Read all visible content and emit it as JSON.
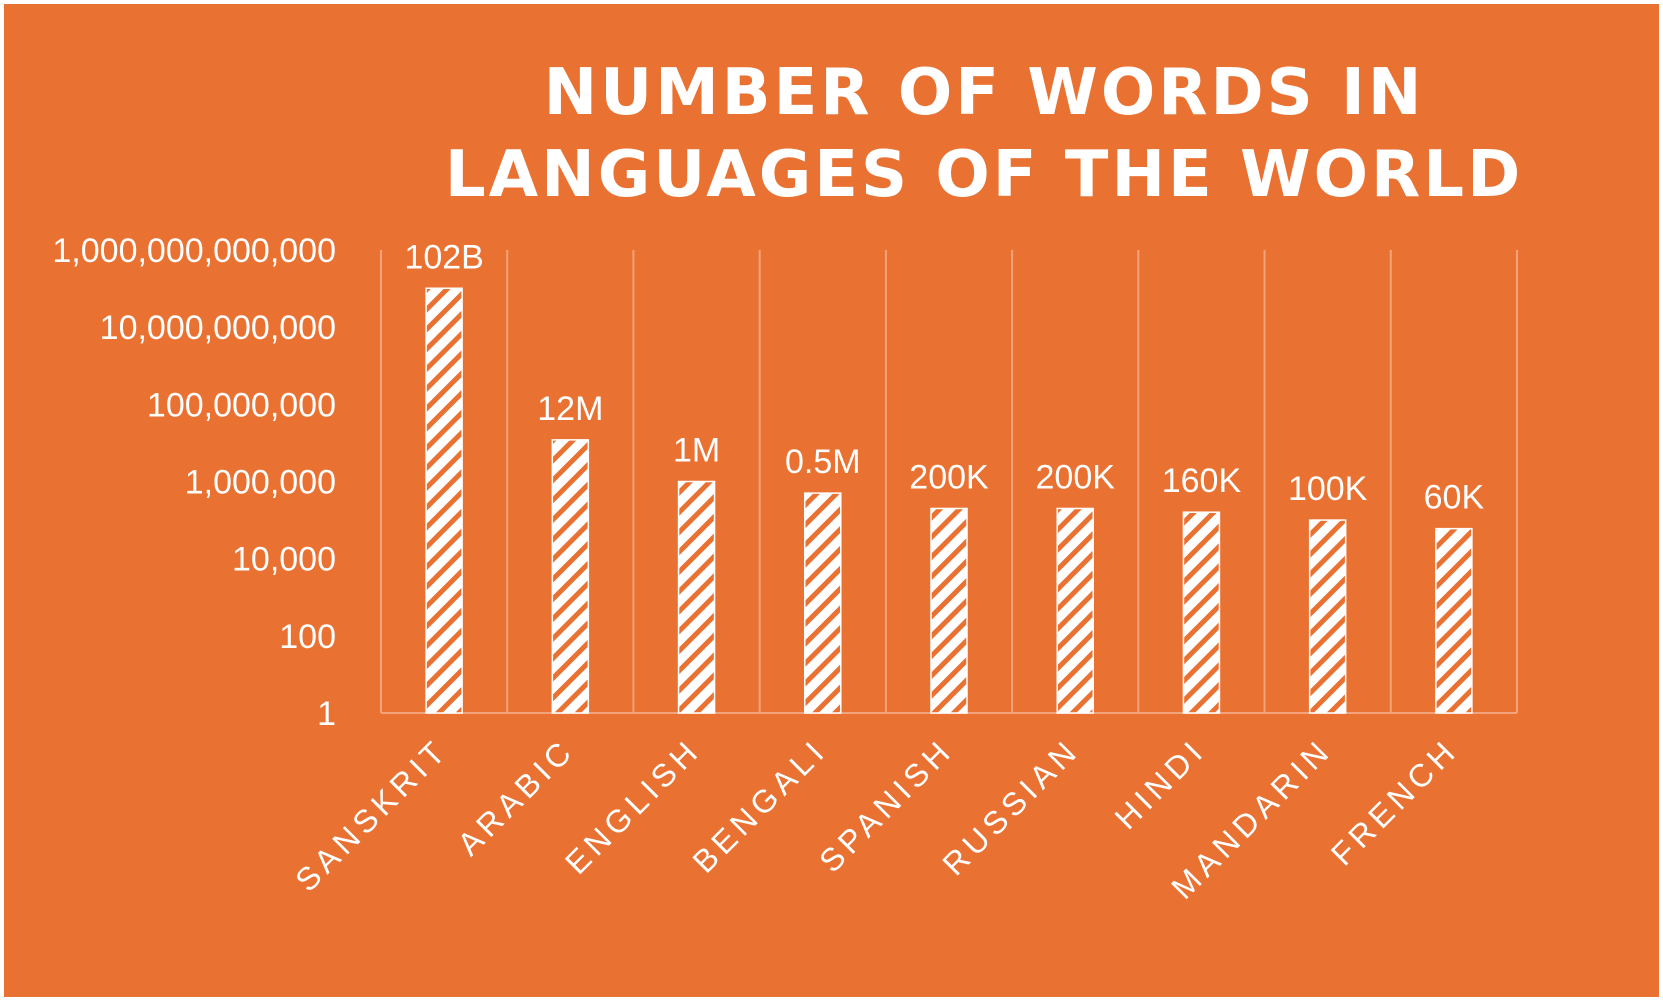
{
  "colors": {
    "background": "#E97132",
    "bar_fill": "#ffffff",
    "bar_hatch": "#E97132",
    "text": "#ffffff",
    "gridline": "#F3A37B"
  },
  "chart_data": {
    "type": "bar",
    "title": "NUMBER OF WORDS IN LANGUAGES OF THE  WORLD",
    "y_scale": "log",
    "ylim": [
      1,
      1000000000000
    ],
    "y_ticks": [
      1,
      100,
      10000,
      1000000,
      100000000,
      10000000000,
      1000000000000
    ],
    "y_tick_labels": [
      "1",
      "100",
      "10,000",
      "1,000,000",
      "100,000,000",
      "10,000,000,000",
      "1,000,000,000,000"
    ],
    "categories": [
      "SANSKRIT",
      "ARABIC",
      "ENGLISH",
      "BENGALI",
      "SPANISH",
      "RUSSIAN",
      "HINDI",
      "MANDARIN",
      "FRENCH"
    ],
    "values": [
      102000000000,
      12000000,
      1000000,
      500000,
      200000,
      200000,
      160000,
      100000,
      60000
    ],
    "data_labels": [
      "102B",
      "12M",
      "1M",
      "0.5M",
      "200K",
      "200K",
      "160K",
      "100K",
      "60K"
    ],
    "grid": "vertical",
    "legend": "none"
  }
}
